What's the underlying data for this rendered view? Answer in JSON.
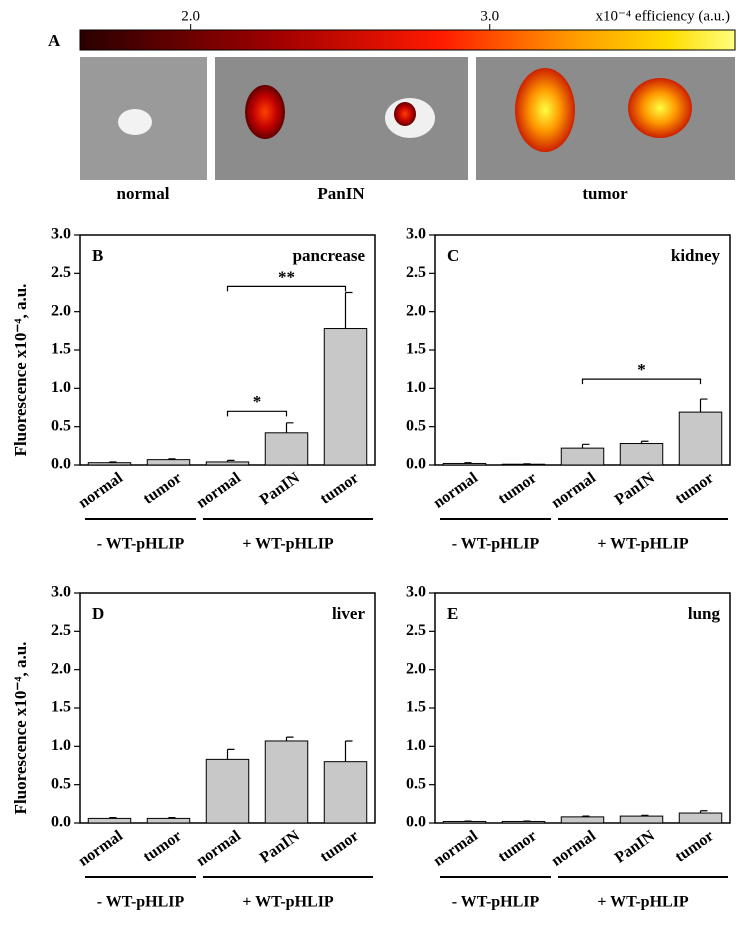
{
  "panel_a": {
    "panel": "A",
    "colorbar": {
      "label": "x10⁻⁴ efficiency (a.u.)",
      "lim": [
        1.63,
        3.82
      ],
      "ticks": [
        {
          "value": 2.0,
          "label": "2.0"
        },
        {
          "value": 3.0,
          "label": "3.0"
        }
      ]
    },
    "images": [
      "normal",
      "PanIN",
      "tumor"
    ]
  },
  "chart_data": [
    {
      "type": "bar",
      "panel": "B",
      "title": "pancrease",
      "ylabel": "Fluorescence x10⁻⁴, a.u.",
      "categories": [
        "normal",
        "tumor",
        "normal",
        "PanIN",
        "tumor"
      ],
      "series": [
        {
          "color": "#c8c8c8",
          "values": [
            0.03,
            0.07,
            0.04,
            0.42,
            1.78
          ],
          "errors": [
            0.01,
            0.01,
            0.02,
            0.13,
            0.47
          ]
        }
      ],
      "groups": [
        {
          "name": "- WT-pHLIP",
          "span": [
            0,
            1
          ]
        },
        {
          "name": "+ WT-pHLIP",
          "span": [
            2,
            4
          ]
        }
      ],
      "annotations": [
        {
          "text": "*",
          "x": [
            2,
            3
          ],
          "y": 0.7
        },
        {
          "text": "**",
          "x": [
            2,
            4
          ],
          "y": 2.33
        }
      ],
      "ylim": [
        0,
        3.0
      ],
      "yticks": [
        {
          "value": 0,
          "label": "0.0"
        },
        0.5,
        {
          "value": 1,
          "label": "1.0"
        },
        1.5,
        {
          "value": 2,
          "label": "2.0"
        },
        2.5,
        {
          "value": 3,
          "label": "3.0"
        }
      ]
    },
    {
      "type": "bar",
      "panel": "C",
      "title": "kidney",
      "categories": [
        "normal",
        "tumor",
        "normal",
        "PanIN",
        "tumor"
      ],
      "series": [
        {
          "color": "#c8c8c8",
          "values": [
            0.02,
            0.01,
            0.22,
            0.28,
            0.69
          ],
          "errors": [
            0.01,
            0.005,
            0.05,
            0.03,
            0.17
          ]
        }
      ],
      "groups": [
        {
          "name": "- WT-pHLIP",
          "span": [
            0,
            1
          ]
        },
        {
          "name": "+ WT-pHLIP",
          "span": [
            2,
            4
          ]
        }
      ],
      "annotations": [
        {
          "text": "*",
          "x": [
            2,
            4
          ],
          "y": 1.12
        }
      ],
      "ylim": [
        0,
        3.0
      ],
      "yticks": [
        {
          "value": 0,
          "label": "0.0"
        },
        0.5,
        {
          "value": 1,
          "label": "1.0"
        },
        1.5,
        {
          "value": 2,
          "label": "2.0"
        },
        2.5,
        {
          "value": 3,
          "label": "3.0"
        }
      ]
    },
    {
      "type": "bar",
      "panel": "D",
      "title": "liver",
      "ylabel": "Fluorescence x10⁻⁴, a.u.",
      "categories": [
        "normal",
        "tumor",
        "normal",
        "PanIN",
        "tumor"
      ],
      "series": [
        {
          "color": "#c8c8c8",
          "values": [
            0.06,
            0.06,
            0.83,
            1.07,
            0.8
          ],
          "errors": [
            0.01,
            0.01,
            0.13,
            0.05,
            0.27
          ]
        }
      ],
      "groups": [
        {
          "name": "- WT-pHLIP",
          "span": [
            0,
            1
          ]
        },
        {
          "name": "+ WT-pHLIP",
          "span": [
            2,
            4
          ]
        }
      ],
      "ylim": [
        0,
        3.0
      ],
      "yticks": [
        {
          "value": 0,
          "label": "0.0"
        },
        0.5,
        {
          "value": 1,
          "label": "1.0"
        },
        1.5,
        {
          "value": 2,
          "label": "2.0"
        },
        2.5,
        {
          "value": 3,
          "label": "3.0"
        }
      ]
    },
    {
      "type": "bar",
      "panel": "E",
      "title": "lung",
      "categories": [
        "normal",
        "tumor",
        "normal",
        "PanIN",
        "tumor"
      ],
      "series": [
        {
          "color": "#c8c8c8",
          "values": [
            0.02,
            0.02,
            0.08,
            0.09,
            0.13
          ],
          "errors": [
            0.005,
            0.005,
            0.01,
            0.01,
            0.03
          ]
        }
      ],
      "groups": [
        {
          "name": "- WT-pHLIP",
          "span": [
            0,
            1
          ]
        },
        {
          "name": "+ WT-pHLIP",
          "span": [
            2,
            4
          ]
        }
      ],
      "ylim": [
        0,
        3.0
      ],
      "yticks": [
        {
          "value": 0,
          "label": "0.0"
        },
        0.5,
        {
          "value": 1,
          "label": "1.0"
        },
        1.5,
        {
          "value": 2,
          "label": "2.0"
        },
        2.5,
        {
          "value": 3,
          "label": "3.0"
        }
      ]
    }
  ]
}
